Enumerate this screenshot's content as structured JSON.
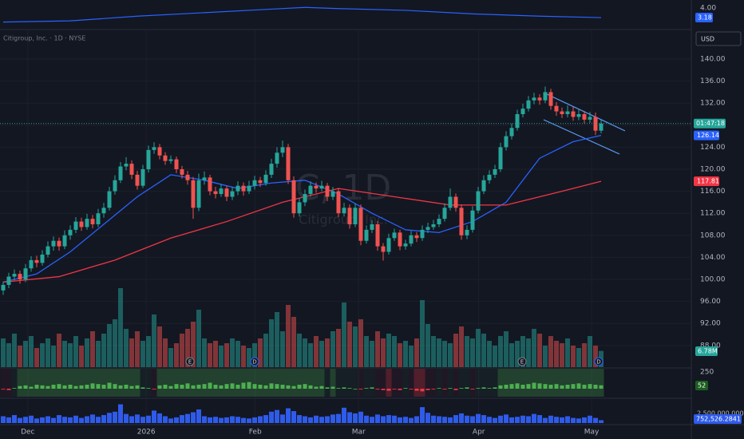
{
  "chart_data": [
    {
      "type": "candlestick",
      "title": "Citigroup, Inc. · 1D · NYSE",
      "currency": "USD",
      "watermark": [
        "C, 1D",
        "Citigroup, Inc."
      ],
      "up_color": "#26a69a",
      "down_color": "#ef5350",
      "ylim": [
        84.06,
        144.93
      ],
      "yticks": [
        {
          "value": 88,
          "label": "88.00"
        },
        {
          "value": 92,
          "label": "92.00"
        },
        {
          "value": 96,
          "label": "96.00"
        },
        {
          "value": 100,
          "label": "100.00"
        },
        {
          "value": 104,
          "label": "104.00"
        },
        {
          "value": 108,
          "label": "108.00"
        },
        {
          "value": 112,
          "label": "112.00"
        },
        {
          "value": 116,
          "label": "116.00"
        },
        {
          "value": 120,
          "label": "120.00"
        },
        {
          "value": 124,
          "label": "124.00"
        },
        {
          "value": 128,
          "label": "128.00"
        },
        {
          "value": 132,
          "label": "132.00"
        },
        {
          "value": 136,
          "label": "136.00"
        },
        {
          "value": 140,
          "label": "140.00"
        }
      ],
      "xticks": [
        {
          "value": 4.4,
          "label": "Dec"
        },
        {
          "value": 25.6,
          "label": "2026"
        },
        {
          "value": 45.1,
          "label": "Feb"
        },
        {
          "value": 63.6,
          "label": "Mar"
        },
        {
          "value": 85.1,
          "label": "Apr"
        },
        {
          "value": 105.3,
          "label": "May"
        }
      ],
      "ohlc": [
        [
          98,
          99.6,
          97.2,
          99
        ],
        [
          99,
          101.2,
          98.4,
          100.5
        ],
        [
          100.5,
          101.8,
          99.8,
          101
        ],
        [
          101,
          101.6,
          99.2,
          100
        ],
        [
          100,
          102.8,
          99.5,
          102
        ],
        [
          102,
          104.2,
          101.4,
          103.5
        ],
        [
          103.5,
          104.3,
          102.2,
          103
        ],
        [
          103,
          105.3,
          102.5,
          104.5
        ],
        [
          104.5,
          106.9,
          104,
          106
        ],
        [
          106,
          107.8,
          105.2,
          107
        ],
        [
          107,
          107.6,
          105.2,
          106
        ],
        [
          106,
          108.9,
          105.5,
          108
        ],
        [
          108,
          109.8,
          107.2,
          109
        ],
        [
          109,
          111.3,
          108.4,
          110.5
        ],
        [
          110.5,
          111.2,
          108.8,
          109.5
        ],
        [
          109.5,
          111.9,
          109,
          111
        ],
        [
          111,
          111.7,
          109.3,
          110
        ],
        [
          110,
          112.8,
          109.5,
          112
        ],
        [
          112,
          113.9,
          111.2,
          113
        ],
        [
          113,
          116.8,
          112.5,
          116
        ],
        [
          116,
          118.9,
          115.4,
          118
        ],
        [
          118,
          121.3,
          117.5,
          120.5
        ],
        [
          120.5,
          122.2,
          119.8,
          121
        ],
        [
          121,
          121.6,
          118.2,
          119
        ],
        [
          119,
          119.7,
          116.3,
          117
        ],
        [
          117,
          120.8,
          116.6,
          120
        ],
        [
          120,
          124.3,
          119.4,
          123.5
        ],
        [
          123.5,
          124.9,
          122.8,
          124
        ],
        [
          124,
          124.6,
          121.8,
          122.5
        ],
        [
          122.5,
          123.1,
          120.8,
          121.5
        ],
        [
          121.5,
          122.5,
          121,
          121.8
        ],
        [
          121.8,
          122.3,
          119.3,
          120
        ],
        [
          120,
          120.6,
          118.3,
          119
        ],
        [
          119,
          119.7,
          117.2,
          118
        ],
        [
          118,
          118.6,
          111,
          113
        ],
        [
          113,
          119.2,
          112.4,
          118
        ],
        [
          118,
          119.6,
          117.2,
          118.5
        ],
        [
          118.5,
          119,
          115.3,
          116
        ],
        [
          116,
          116.8,
          114.7,
          115.5
        ],
        [
          115.5,
          117.3,
          115,
          116.5
        ],
        [
          116.5,
          117,
          114.2,
          115
        ],
        [
          115,
          116.8,
          114.4,
          116
        ],
        [
          116,
          117.8,
          115.3,
          117
        ],
        [
          117,
          117.6,
          115.2,
          116
        ],
        [
          116,
          117.9,
          115.5,
          117
        ],
        [
          117,
          118.8,
          116.3,
          118
        ],
        [
          118,
          118.6,
          116.8,
          117.5
        ],
        [
          117.5,
          119.8,
          117,
          119
        ],
        [
          119,
          121.9,
          118.4,
          121
        ],
        [
          121,
          124,
          120.3,
          123
        ],
        [
          123,
          125.2,
          122.2,
          124
        ],
        [
          124,
          124.6,
          117.3,
          118
        ],
        [
          118,
          118.7,
          111.2,
          112
        ],
        [
          112,
          114.8,
          111.4,
          114
        ],
        [
          114,
          116.3,
          113.3,
          115.5
        ],
        [
          115.5,
          117.8,
          115,
          117
        ],
        [
          117,
          117.6,
          115.7,
          116.5
        ],
        [
          116.5,
          117.9,
          116,
          117
        ],
        [
          117,
          117.5,
          114.2,
          115
        ],
        [
          115,
          116.8,
          114.4,
          116
        ],
        [
          116,
          116.6,
          111.3,
          112
        ],
        [
          112,
          113.9,
          111.4,
          113
        ],
        [
          113,
          113.6,
          109.2,
          110
        ],
        [
          110,
          113.8,
          109.5,
          113
        ],
        [
          113,
          113.6,
          106.2,
          107
        ],
        [
          107,
          109.8,
          106.5,
          109
        ],
        [
          109,
          110.8,
          108.4,
          110
        ],
        [
          110,
          110.6,
          105.2,
          106
        ],
        [
          106,
          106.6,
          103.4,
          105
        ],
        [
          105,
          108.3,
          104.5,
          107.5
        ],
        [
          107.5,
          109.2,
          107,
          108.5
        ],
        [
          108.5,
          109,
          105.3,
          106
        ],
        [
          106,
          107.2,
          105.4,
          106.5
        ],
        [
          106.5,
          108.8,
          106,
          108
        ],
        [
          108,
          108.6,
          106.8,
          107.5
        ],
        [
          107.5,
          109.8,
          107,
          109
        ],
        [
          109,
          110.3,
          108.4,
          109.5
        ],
        [
          109.5,
          110.8,
          109,
          110
        ],
        [
          110,
          111.8,
          109.5,
          111
        ],
        [
          111,
          113.8,
          110.5,
          113
        ],
        [
          113,
          116.5,
          112.5,
          115
        ],
        [
          115,
          115.6,
          112.3,
          113
        ],
        [
          113,
          113.6,
          107.2,
          108
        ],
        [
          108,
          109.8,
          107.3,
          109
        ],
        [
          109,
          113.3,
          108.5,
          112.5
        ],
        [
          112.5,
          116.8,
          112,
          116
        ],
        [
          116,
          118.9,
          115.5,
          118
        ],
        [
          118,
          119.8,
          117.4,
          119
        ],
        [
          119,
          120.8,
          118.4,
          120
        ],
        [
          120,
          124.8,
          119.5,
          124
        ],
        [
          124,
          126.9,
          123.4,
          126
        ],
        [
          126,
          128.3,
          125.4,
          127.5
        ],
        [
          127.5,
          130.8,
          127,
          130
        ],
        [
          130,
          131.9,
          129.4,
          131
        ],
        [
          131,
          133.3,
          130.5,
          132.5
        ],
        [
          132.5,
          133.9,
          131.8,
          133
        ],
        [
          133,
          133.6,
          131.7,
          132.5
        ],
        [
          132.5,
          135,
          132,
          134
        ],
        [
          134,
          134.6,
          130.8,
          131.5
        ],
        [
          131.5,
          132.2,
          129.7,
          130.5
        ],
        [
          130.5,
          131.2,
          129.3,
          130
        ],
        [
          130,
          131.6,
          129.4,
          130.5
        ],
        [
          130.5,
          131.3,
          128.8,
          129.5
        ],
        [
          129.5,
          130.9,
          128.9,
          130
        ],
        [
          130,
          130.6,
          128.3,
          129
        ],
        [
          129,
          130.4,
          128.4,
          129.5
        ],
        [
          129.5,
          130.3,
          126.2,
          127
        ],
        [
          127,
          129,
          126.5,
          128.3
        ]
      ],
      "volume": [
        12,
        10,
        14,
        9,
        11,
        13,
        8,
        10,
        12,
        9,
        14,
        11,
        10,
        13,
        9,
        12,
        15,
        11,
        14,
        18,
        20,
        33,
        16,
        12,
        15,
        11,
        13,
        22,
        17,
        12,
        8,
        10,
        14,
        16,
        19,
        24,
        12,
        10,
        11,
        9,
        10,
        12,
        11,
        9,
        8,
        10,
        12,
        14,
        20,
        23,
        15,
        26,
        21,
        14,
        12,
        10,
        13,
        11,
        12,
        15,
        16,
        27,
        19,
        17,
        20,
        13,
        11,
        15,
        12,
        14,
        13,
        10,
        11,
        9,
        12,
        28,
        18,
        13,
        12,
        11,
        10,
        14,
        17,
        13,
        12,
        16,
        14,
        11,
        9,
        13,
        15,
        10,
        11,
        13,
        12,
        16,
        14,
        9,
        13,
        11,
        10,
        12,
        9,
        8,
        10,
        13,
        9,
        6.78
      ],
      "volume_label": "6.78M",
      "moving_averages": [
        {
          "color": "#2962ff",
          "x": [
            0,
            6,
            12,
            18,
            24,
            30,
            36,
            42,
            48,
            54,
            60,
            66,
            72,
            78,
            84,
            90,
            96,
            102,
            107
          ],
          "values": [
            99.5,
            101,
            105,
            110,
            115,
            119,
            118,
            116.5,
            117.5,
            118,
            115.5,
            112,
            109,
            108.5,
            110.5,
            114,
            122,
            125,
            126.14
          ]
        },
        {
          "color": "#f23645",
          "x": [
            0,
            10,
            20,
            30,
            40,
            50,
            60,
            70,
            80,
            90,
            100,
            107
          ],
          "values": [
            99.5,
            100.5,
            103.5,
            107.5,
            110.5,
            114,
            116.5,
            115,
            113.5,
            113.5,
            116,
            117.81
          ]
        }
      ],
      "countdown": "01:47:18",
      "events": [
        "E",
        "D",
        "E",
        "D"
      ]
    },
    {
      "type": "line",
      "color": "#2962ff",
      "ylim": [
        2.23,
        4.68
      ],
      "yticks": [
        {
          "value": 4,
          "label": "4.00"
        }
      ],
      "x": [
        0,
        12,
        24,
        36,
        48,
        54,
        60,
        72,
        84,
        96,
        107
      ],
      "values": [
        2.8,
        2.9,
        3.3,
        3.6,
        3.9,
        4.05,
        3.95,
        3.8,
        3.5,
        3.3,
        3.18
      ]
    },
    {
      "type": "bar",
      "ylim": [
        -120,
        300
      ],
      "yticks": [
        250
      ],
      "up_color": "#4caf50",
      "down_color": "#f23645",
      "values": [
        -10,
        -20,
        10,
        40,
        50,
        30,
        60,
        50,
        40,
        60,
        70,
        50,
        60,
        40,
        50,
        60,
        80,
        70,
        60,
        90,
        70,
        50,
        60,
        40,
        50,
        20,
        10,
        -10,
        50,
        60,
        40,
        70,
        60,
        80,
        50,
        60,
        70,
        90,
        60,
        50,
        70,
        80,
        60,
        90,
        100,
        70,
        60,
        50,
        80,
        70,
        60,
        50,
        40,
        60,
        70,
        50,
        30,
        40,
        20,
        30,
        10,
        20,
        10,
        0,
        -10,
        10,
        20,
        -10,
        -20,
        -30,
        -10,
        -20,
        10,
        -10,
        -30,
        -40,
        -20,
        -10,
        10,
        -10,
        10,
        -20,
        10,
        20,
        -10,
        10,
        20,
        10,
        20,
        50,
        60,
        70,
        80,
        60,
        70,
        90,
        80,
        70,
        60,
        70,
        50,
        60,
        70,
        80,
        60,
        70,
        60,
        52
      ]
    },
    {
      "type": "bar",
      "color": "#2f5bea",
      "ylim": [
        0,
        5700000
      ],
      "yticks": [
        {
          "value": 2500000,
          "label": "2,500,000.0000"
        }
      ],
      "values": [
        1800000,
        1500000,
        2100000,
        1350000,
        1650000,
        1950000,
        1200000,
        1500000,
        1800000,
        1350000,
        2100000,
        1650000,
        1500000,
        1950000,
        1350000,
        1800000,
        2250000,
        1650000,
        2100000,
        2700000,
        3000000,
        4950000,
        2400000,
        1800000,
        2250000,
        1650000,
        1950000,
        3300000,
        2550000,
        1800000,
        1200000,
        1500000,
        2100000,
        2400000,
        2850000,
        3600000,
        1800000,
        1500000,
        1650000,
        1350000,
        1500000,
        1800000,
        1650000,
        1350000,
        1200000,
        1500000,
        1800000,
        2100000,
        3000000,
        3450000,
        2250000,
        3900000,
        3150000,
        2100000,
        1800000,
        1500000,
        1950000,
        1650000,
        1800000,
        2250000,
        2400000,
        4050000,
        2850000,
        2550000,
        3000000,
        1950000,
        1650000,
        2250000,
        1800000,
        2100000,
        1950000,
        1500000,
        1650000,
        1350000,
        1800000,
        4200000,
        2700000,
        1950000,
        1800000,
        1650000,
        1500000,
        2100000,
        2550000,
        1950000,
        1800000,
        2400000,
        2100000,
        1650000,
        1350000,
        1950000,
        2250000,
        1500000,
        1650000,
        1950000,
        1800000,
        2400000,
        2100000,
        1350000,
        1950000,
        1650000,
        1500000,
        1800000,
        1350000,
        1200000,
        1500000,
        1950000,
        1350000,
        752526.2841
      ],
      "last_label": "752,526.2841"
    }
  ]
}
